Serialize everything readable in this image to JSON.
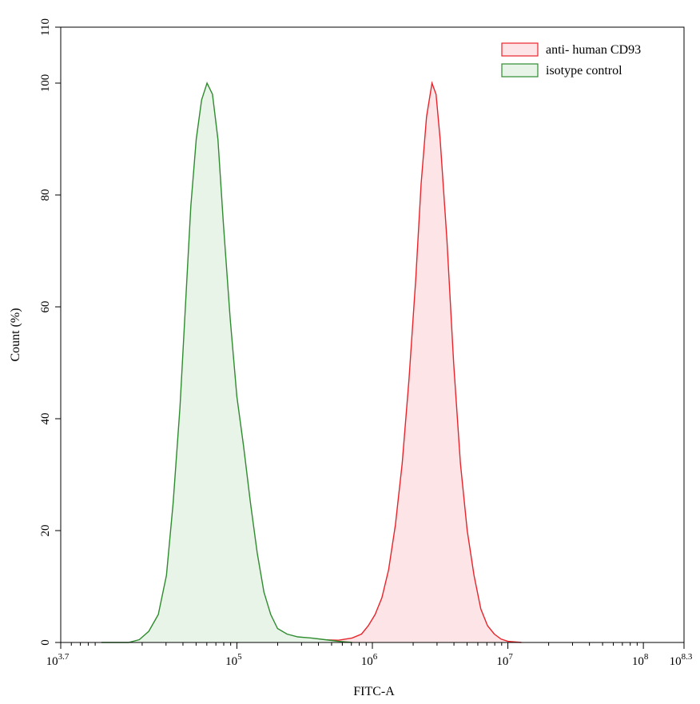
{
  "chart_data": {
    "type": "area",
    "title": "",
    "xlabel": "FITC-A",
    "ylabel": "Count  (%)",
    "x_scale": "log10",
    "xlim": [
      3.7,
      8.3
    ],
    "ylim": [
      0,
      110
    ],
    "grid": false,
    "legend_position": "top-right",
    "x_ticks": [
      {
        "value": 3.7,
        "base": "10",
        "exp": "3.7"
      },
      {
        "value": 5,
        "base": "10",
        "exp": "5"
      },
      {
        "value": 6,
        "base": "10",
        "exp": "6"
      },
      {
        "value": 7,
        "base": "10",
        "exp": "7"
      },
      {
        "value": 8,
        "base": "10",
        "exp": "8"
      },
      {
        "value": 8.3,
        "base": "10",
        "exp": "8.3"
      }
    ],
    "y_ticks": [
      0,
      20,
      40,
      60,
      80,
      100,
      110
    ],
    "series": [
      {
        "name": "anti- human  CD93",
        "stroke": "#e8242b",
        "fill": "#fde4e6",
        "points": [
          [
            5.0,
            0
          ],
          [
            5.1,
            0.2
          ],
          [
            5.3,
            0.2
          ],
          [
            5.5,
            0.3
          ],
          [
            5.6,
            0.5
          ],
          [
            5.75,
            0.4
          ],
          [
            5.85,
            0.8
          ],
          [
            5.92,
            1.5
          ],
          [
            5.97,
            3
          ],
          [
            6.02,
            5
          ],
          [
            6.07,
            8
          ],
          [
            6.12,
            13
          ],
          [
            6.17,
            21
          ],
          [
            6.22,
            32
          ],
          [
            6.27,
            47
          ],
          [
            6.32,
            65
          ],
          [
            6.36,
            82
          ],
          [
            6.4,
            94
          ],
          [
            6.44,
            100
          ],
          [
            6.47,
            98
          ],
          [
            6.5,
            90
          ],
          [
            6.55,
            72
          ],
          [
            6.6,
            50
          ],
          [
            6.65,
            32
          ],
          [
            6.7,
            20
          ],
          [
            6.75,
            12
          ],
          [
            6.8,
            6
          ],
          [
            6.85,
            3
          ],
          [
            6.9,
            1.5
          ],
          [
            6.95,
            0.6
          ],
          [
            7.0,
            0.2
          ],
          [
            7.1,
            0
          ]
        ]
      },
      {
        "name": "isotype  control",
        "stroke": "#2e8b2e",
        "fill": "#e8f4e8",
        "points": [
          [
            4.0,
            0
          ],
          [
            4.2,
            0
          ],
          [
            4.28,
            0.5
          ],
          [
            4.35,
            2
          ],
          [
            4.42,
            5
          ],
          [
            4.48,
            12
          ],
          [
            4.53,
            25
          ],
          [
            4.58,
            42
          ],
          [
            4.62,
            60
          ],
          [
            4.66,
            78
          ],
          [
            4.7,
            90
          ],
          [
            4.74,
            97
          ],
          [
            4.78,
            100
          ],
          [
            4.82,
            98
          ],
          [
            4.86,
            90
          ],
          [
            4.9,
            75
          ],
          [
            4.95,
            58
          ],
          [
            5.0,
            44
          ],
          [
            5.05,
            35
          ],
          [
            5.1,
            25
          ],
          [
            5.15,
            16
          ],
          [
            5.2,
            9
          ],
          [
            5.25,
            5
          ],
          [
            5.3,
            2.5
          ],
          [
            5.37,
            1.5
          ],
          [
            5.45,
            1
          ],
          [
            5.55,
            0.8
          ],
          [
            5.65,
            0.5
          ],
          [
            5.75,
            0.2
          ],
          [
            5.85,
            0
          ]
        ]
      }
    ]
  }
}
